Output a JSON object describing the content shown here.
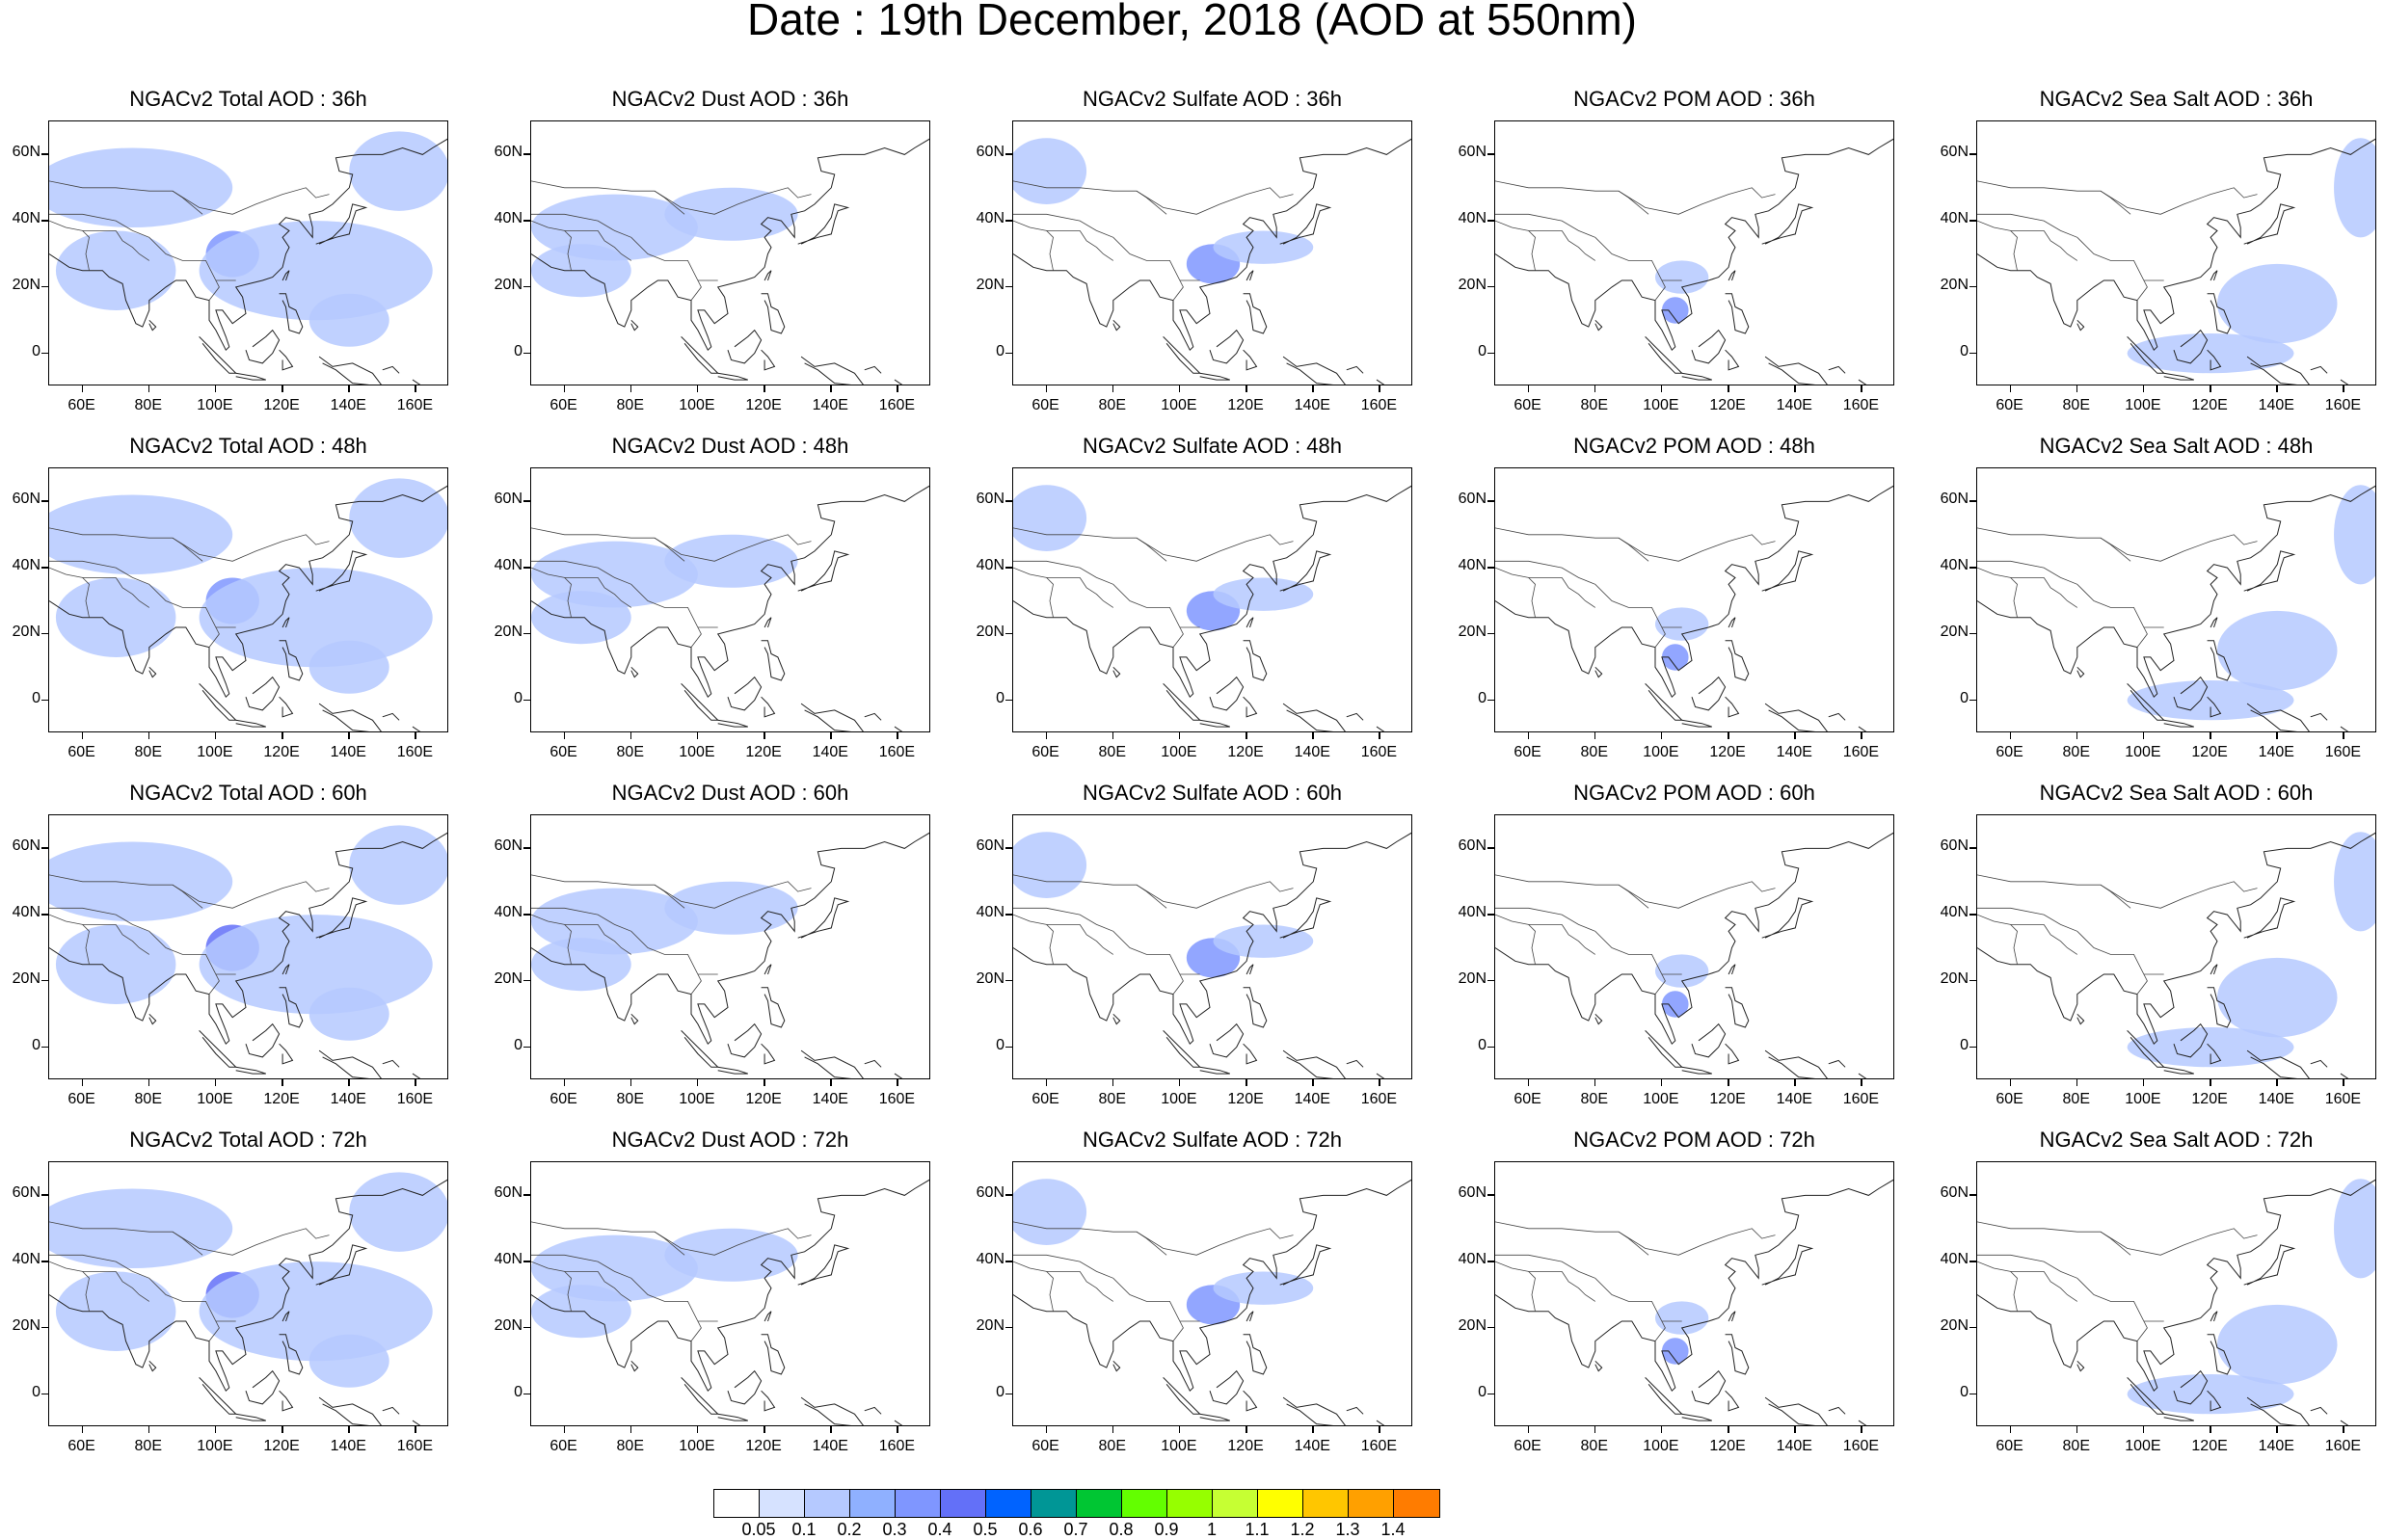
{
  "title": "Date : 19th December, 2018 (AOD at 550nm)",
  "axes": {
    "x_ticks": [
      "60E",
      "80E",
      "100E",
      "120E",
      "140E",
      "160E"
    ],
    "x_tick_values": [
      60,
      80,
      100,
      120,
      140,
      160
    ],
    "y_ticks": [
      "60N",
      "40N",
      "20N",
      "0"
    ],
    "y_tick_values": [
      60,
      40,
      20,
      0
    ],
    "lon_range": [
      50,
      170
    ],
    "lat_range": [
      -10,
      70
    ]
  },
  "panels": [
    [
      {
        "title": "NGACv2 Total AOD : 36h",
        "species": "total",
        "hour": 36
      },
      {
        "title": "NGACv2 Dust AOD : 36h",
        "species": "dust",
        "hour": 36
      },
      {
        "title": "NGACv2 Sulfate AOD : 36h",
        "species": "sulfate",
        "hour": 36
      },
      {
        "title": "NGACv2 POM AOD : 36h",
        "species": "pom",
        "hour": 36
      },
      {
        "title": "NGACv2 Sea Salt AOD : 36h",
        "species": "seasalt",
        "hour": 36
      }
    ],
    [
      {
        "title": "NGACv2 Total AOD : 48h",
        "species": "total",
        "hour": 48
      },
      {
        "title": "NGACv2 Dust AOD : 48h",
        "species": "dust",
        "hour": 48
      },
      {
        "title": "NGACv2 Sulfate AOD : 48h",
        "species": "sulfate",
        "hour": 48
      },
      {
        "title": "NGACv2 POM AOD : 48h",
        "species": "pom",
        "hour": 48
      },
      {
        "title": "NGACv2 Sea Salt AOD : 48h",
        "species": "seasalt",
        "hour": 48
      }
    ],
    [
      {
        "title": "NGACv2 Total AOD : 60h",
        "species": "total",
        "hour": 60
      },
      {
        "title": "NGACv2 Dust AOD : 60h",
        "species": "dust",
        "hour": 60
      },
      {
        "title": "NGACv2 Sulfate AOD : 60h",
        "species": "sulfate",
        "hour": 60
      },
      {
        "title": "NGACv2 POM AOD : 60h",
        "species": "pom",
        "hour": 60
      },
      {
        "title": "NGACv2 Sea Salt AOD : 60h",
        "species": "seasalt",
        "hour": 60
      }
    ],
    [
      {
        "title": "NGACv2 Total AOD : 72h",
        "species": "total",
        "hour": 72
      },
      {
        "title": "NGACv2 Dust AOD : 72h",
        "species": "dust",
        "hour": 72
      },
      {
        "title": "NGACv2 Sulfate AOD : 72h",
        "species": "sulfate",
        "hour": 72
      },
      {
        "title": "NGACv2 POM AOD : 72h",
        "species": "pom",
        "hour": 72
      },
      {
        "title": "NGACv2 Sea Salt  AOD : 72h",
        "species": "seasalt",
        "hour": 72
      }
    ]
  ],
  "colorbar": {
    "labels": [
      "0.05",
      "0.1",
      "0.2",
      "0.3",
      "0.4",
      "0.5",
      "0.6",
      "0.7",
      "0.8",
      "0.9",
      "1",
      "1.1",
      "1.2",
      "1.3",
      "1.4"
    ],
    "colors": [
      "#ffffff",
      "#d6e2ff",
      "#b5c9ff",
      "#8fb0ff",
      "#7f96ff",
      "#6370f8",
      "#0063ff",
      "#009696",
      "#00c633",
      "#63ff00",
      "#96ff00",
      "#c6ff33",
      "#ffff00",
      "#ffc600",
      "#ffa000",
      "#ff7c00",
      "#ff1900"
    ]
  },
  "plumes": {
    "total": [
      {
        "lon": 75,
        "lat": 50,
        "rlon": 30,
        "rlat": 12,
        "v": 0.15
      },
      {
        "lon": 105,
        "lat": 30,
        "rlon": 8,
        "rlat": 7,
        "v": 0.35
      },
      {
        "lon": 70,
        "lat": 25,
        "rlon": 18,
        "rlat": 12,
        "v": 0.15
      },
      {
        "lon": 130,
        "lat": 25,
        "rlon": 35,
        "rlat": 15,
        "v": 0.1
      },
      {
        "lon": 155,
        "lat": 55,
        "rlon": 15,
        "rlat": 12,
        "v": 0.15
      },
      {
        "lon": 140,
        "lat": 10,
        "rlon": 12,
        "rlat": 8,
        "v": 0.15
      }
    ],
    "dust": [
      {
        "lon": 75,
        "lat": 38,
        "rlon": 25,
        "rlat": 10,
        "v": 0.15
      },
      {
        "lon": 110,
        "lat": 42,
        "rlon": 20,
        "rlat": 8,
        "v": 0.1
      },
      {
        "lon": 65,
        "lat": 25,
        "rlon": 15,
        "rlat": 8,
        "v": 0.15
      }
    ],
    "sulfate": [
      {
        "lon": 60,
        "lat": 55,
        "rlon": 12,
        "rlat": 10,
        "v": 0.15
      },
      {
        "lon": 110,
        "lat": 27,
        "rlon": 8,
        "rlat": 6,
        "v": 0.3
      },
      {
        "lon": 125,
        "lat": 32,
        "rlon": 15,
        "rlat": 5,
        "v": 0.1
      }
    ],
    "pom": [
      {
        "lon": 104,
        "lat": 13,
        "rlon": 4,
        "rlat": 4,
        "v": 0.3
      },
      {
        "lon": 106,
        "lat": 23,
        "rlon": 8,
        "rlat": 5,
        "v": 0.1
      }
    ],
    "seasalt": [
      {
        "lon": 140,
        "lat": 15,
        "rlon": 18,
        "rlat": 12,
        "v": 0.15
      },
      {
        "lon": 165,
        "lat": 50,
        "rlon": 8,
        "rlat": 15,
        "v": 0.15
      },
      {
        "lon": 120,
        "lat": 0,
        "rlon": 25,
        "rlat": 6,
        "v": 0.1
      }
    ]
  }
}
